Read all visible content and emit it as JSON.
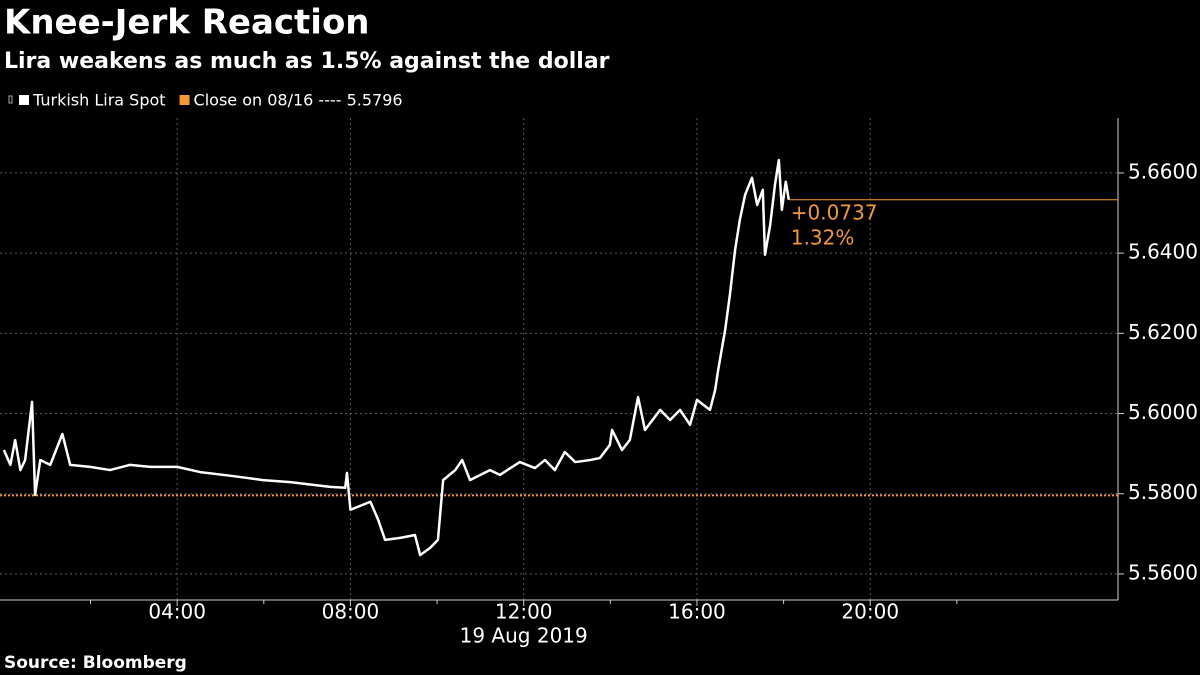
{
  "chart_data": {
    "type": "line",
    "title": "Knee-Jerk Reaction",
    "subtitle": "Lira weakens as much as 1.5% against the dollar",
    "xlabel": "19 Aug 2019",
    "source": "Source: Bloomberg",
    "x": [
      0.0,
      0.15,
      0.26,
      0.38,
      0.49,
      0.65,
      0.72,
      0.84,
      1.07,
      1.35,
      1.53,
      1.99,
      2.45,
      2.91,
      3.38,
      4.0,
      4.53,
      5.22,
      5.98,
      6.61,
      7.53,
      7.88,
      7.92,
      8.0,
      8.46,
      8.64,
      8.8,
      9.15,
      9.49,
      9.61,
      9.84,
      10.02,
      10.14,
      10.42,
      10.58,
      10.76,
      11.22,
      11.45,
      11.91,
      12.26,
      12.49,
      12.72,
      12.95,
      13.19,
      13.53,
      13.76,
      13.99,
      14.04,
      14.27,
      14.45,
      14.64,
      14.8,
      15.15,
      15.38,
      15.61,
      15.84,
      16.0,
      16.3,
      16.42,
      16.49,
      16.65,
      16.76,
      16.88,
      16.99,
      17.11,
      17.27,
      17.39,
      17.52,
      17.57,
      17.69,
      17.8,
      17.89,
      17.96,
      18.05,
      18.12
    ],
    "series": [
      {
        "name": "Turkish Lira Spot",
        "color": "#ffffff",
        "values": [
          5.5909,
          5.5872,
          5.5934,
          5.5859,
          5.5884,
          5.6029,
          5.5797,
          5.5884,
          5.5872,
          5.5949,
          5.5872,
          5.5867,
          5.5859,
          5.5872,
          5.5867,
          5.5867,
          5.5854,
          5.5845,
          5.5834,
          5.5829,
          5.5817,
          5.5815,
          5.5852,
          5.576,
          5.578,
          5.5735,
          5.5685,
          5.569,
          5.5697,
          5.5647,
          5.5665,
          5.5685,
          5.5834,
          5.5859,
          5.5884,
          5.5834,
          5.5859,
          5.5847,
          5.5879,
          5.5864,
          5.5884,
          5.5859,
          5.5904,
          5.5879,
          5.5884,
          5.5889,
          5.5922,
          5.5959,
          5.5909,
          5.5934,
          5.6041,
          5.5959,
          5.6009,
          5.5984,
          5.6009,
          5.5972,
          5.6034,
          5.6009,
          5.6059,
          5.6109,
          5.6208,
          5.6296,
          5.6408,
          5.6483,
          5.6545,
          5.6588,
          5.652,
          5.6558,
          5.6396,
          5.647,
          5.657,
          5.6632,
          5.6508,
          5.6578,
          5.6533
        ]
      }
    ],
    "close": {
      "name": "Close on 08/16 ---- 5.5796",
      "value": 5.5796,
      "color": "#f39a2e"
    },
    "annotations": [
      "+0.0737",
      "1.32%"
    ],
    "xlim": [
      -0.09,
      25.72
    ],
    "xticks": [
      {
        "value": 4,
        "label": "04:00"
      },
      {
        "value": 8,
        "label": "08:00"
      },
      {
        "value": 12,
        "label": "12:00"
      },
      {
        "value": 16,
        "label": "16:00"
      },
      {
        "value": 20,
        "label": "20:00"
      }
    ],
    "xminorticks": [
      2,
      6,
      10,
      14,
      18,
      22
    ],
    "ylim": [
      5.5535,
      5.6737
    ],
    "yticks": [
      {
        "value": 5.56,
        "label": "5.5600"
      },
      {
        "value": 5.58,
        "label": "5.5800"
      },
      {
        "value": 5.6,
        "label": "5.6000"
      },
      {
        "value": 5.62,
        "label": "5.6200"
      },
      {
        "value": 5.64,
        "label": "5.6400"
      },
      {
        "value": 5.66,
        "label": "5.6600"
      }
    ],
    "grid": true
  }
}
